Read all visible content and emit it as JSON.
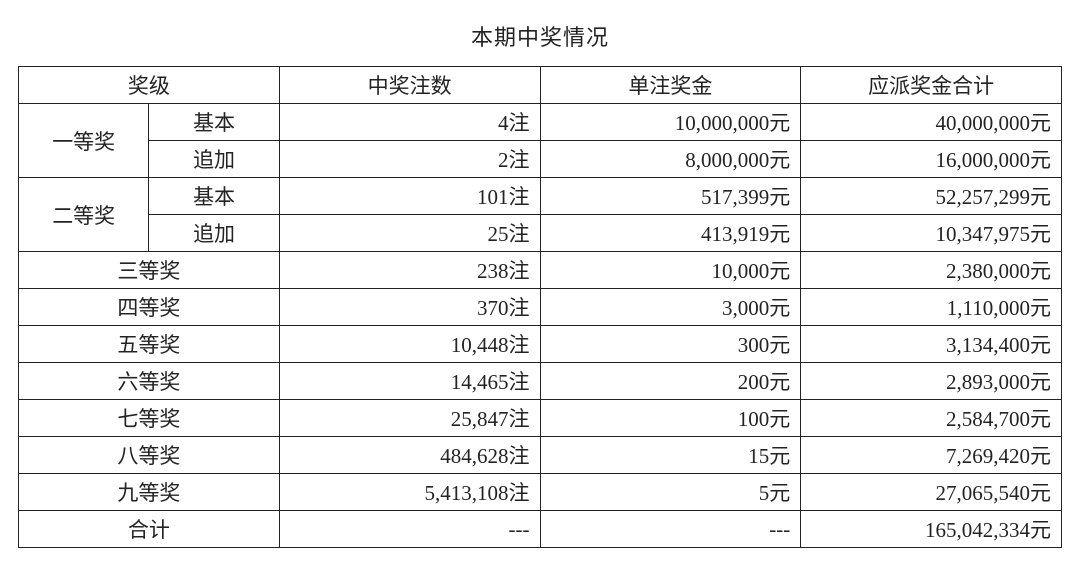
{
  "title": "本期中奖情况",
  "headers": {
    "level": "奖级",
    "count": "中奖注数",
    "amount": "单注奖金",
    "total": "应派奖金合计"
  },
  "sub_labels": {
    "basic": "基本",
    "addon": "追加"
  },
  "first_prize": {
    "label": "一等奖",
    "basic": {
      "count": "4注",
      "amount": "10,000,000元",
      "total": "40,000,000元"
    },
    "addon": {
      "count": "2注",
      "amount": "8,000,000元",
      "total": "16,000,000元"
    }
  },
  "second_prize": {
    "label": "二等奖",
    "basic": {
      "count": "101注",
      "amount": "517,399元",
      "total": "52,257,299元"
    },
    "addon": {
      "count": "25注",
      "amount": "413,919元",
      "total": "10,347,975元"
    }
  },
  "simple_rows": [
    {
      "label": "三等奖",
      "count": "238注",
      "amount": "10,000元",
      "total": "2,380,000元"
    },
    {
      "label": "四等奖",
      "count": "370注",
      "amount": "3,000元",
      "total": "1,110,000元"
    },
    {
      "label": "五等奖",
      "count": "10,448注",
      "amount": "300元",
      "total": "3,134,400元"
    },
    {
      "label": "六等奖",
      "count": "14,465注",
      "amount": "200元",
      "total": "2,893,000元"
    },
    {
      "label": "七等奖",
      "count": "25,847注",
      "amount": "100元",
      "total": "2,584,700元"
    },
    {
      "label": "八等奖",
      "count": "484,628注",
      "amount": "15元",
      "total": "7,269,420元"
    },
    {
      "label": "九等奖",
      "count": "5,413,108注",
      "amount": "5元",
      "total": "27,065,540元"
    }
  ],
  "total_row": {
    "label": "合计",
    "count": "---",
    "amount": "---",
    "total": "165,042,334元"
  },
  "style": {
    "border_color": "#232323",
    "text_color": "#232323",
    "background_color": "#ffffff",
    "title_fontsize": 22,
    "cell_fontsize": 21,
    "font_family": "SimSun"
  }
}
